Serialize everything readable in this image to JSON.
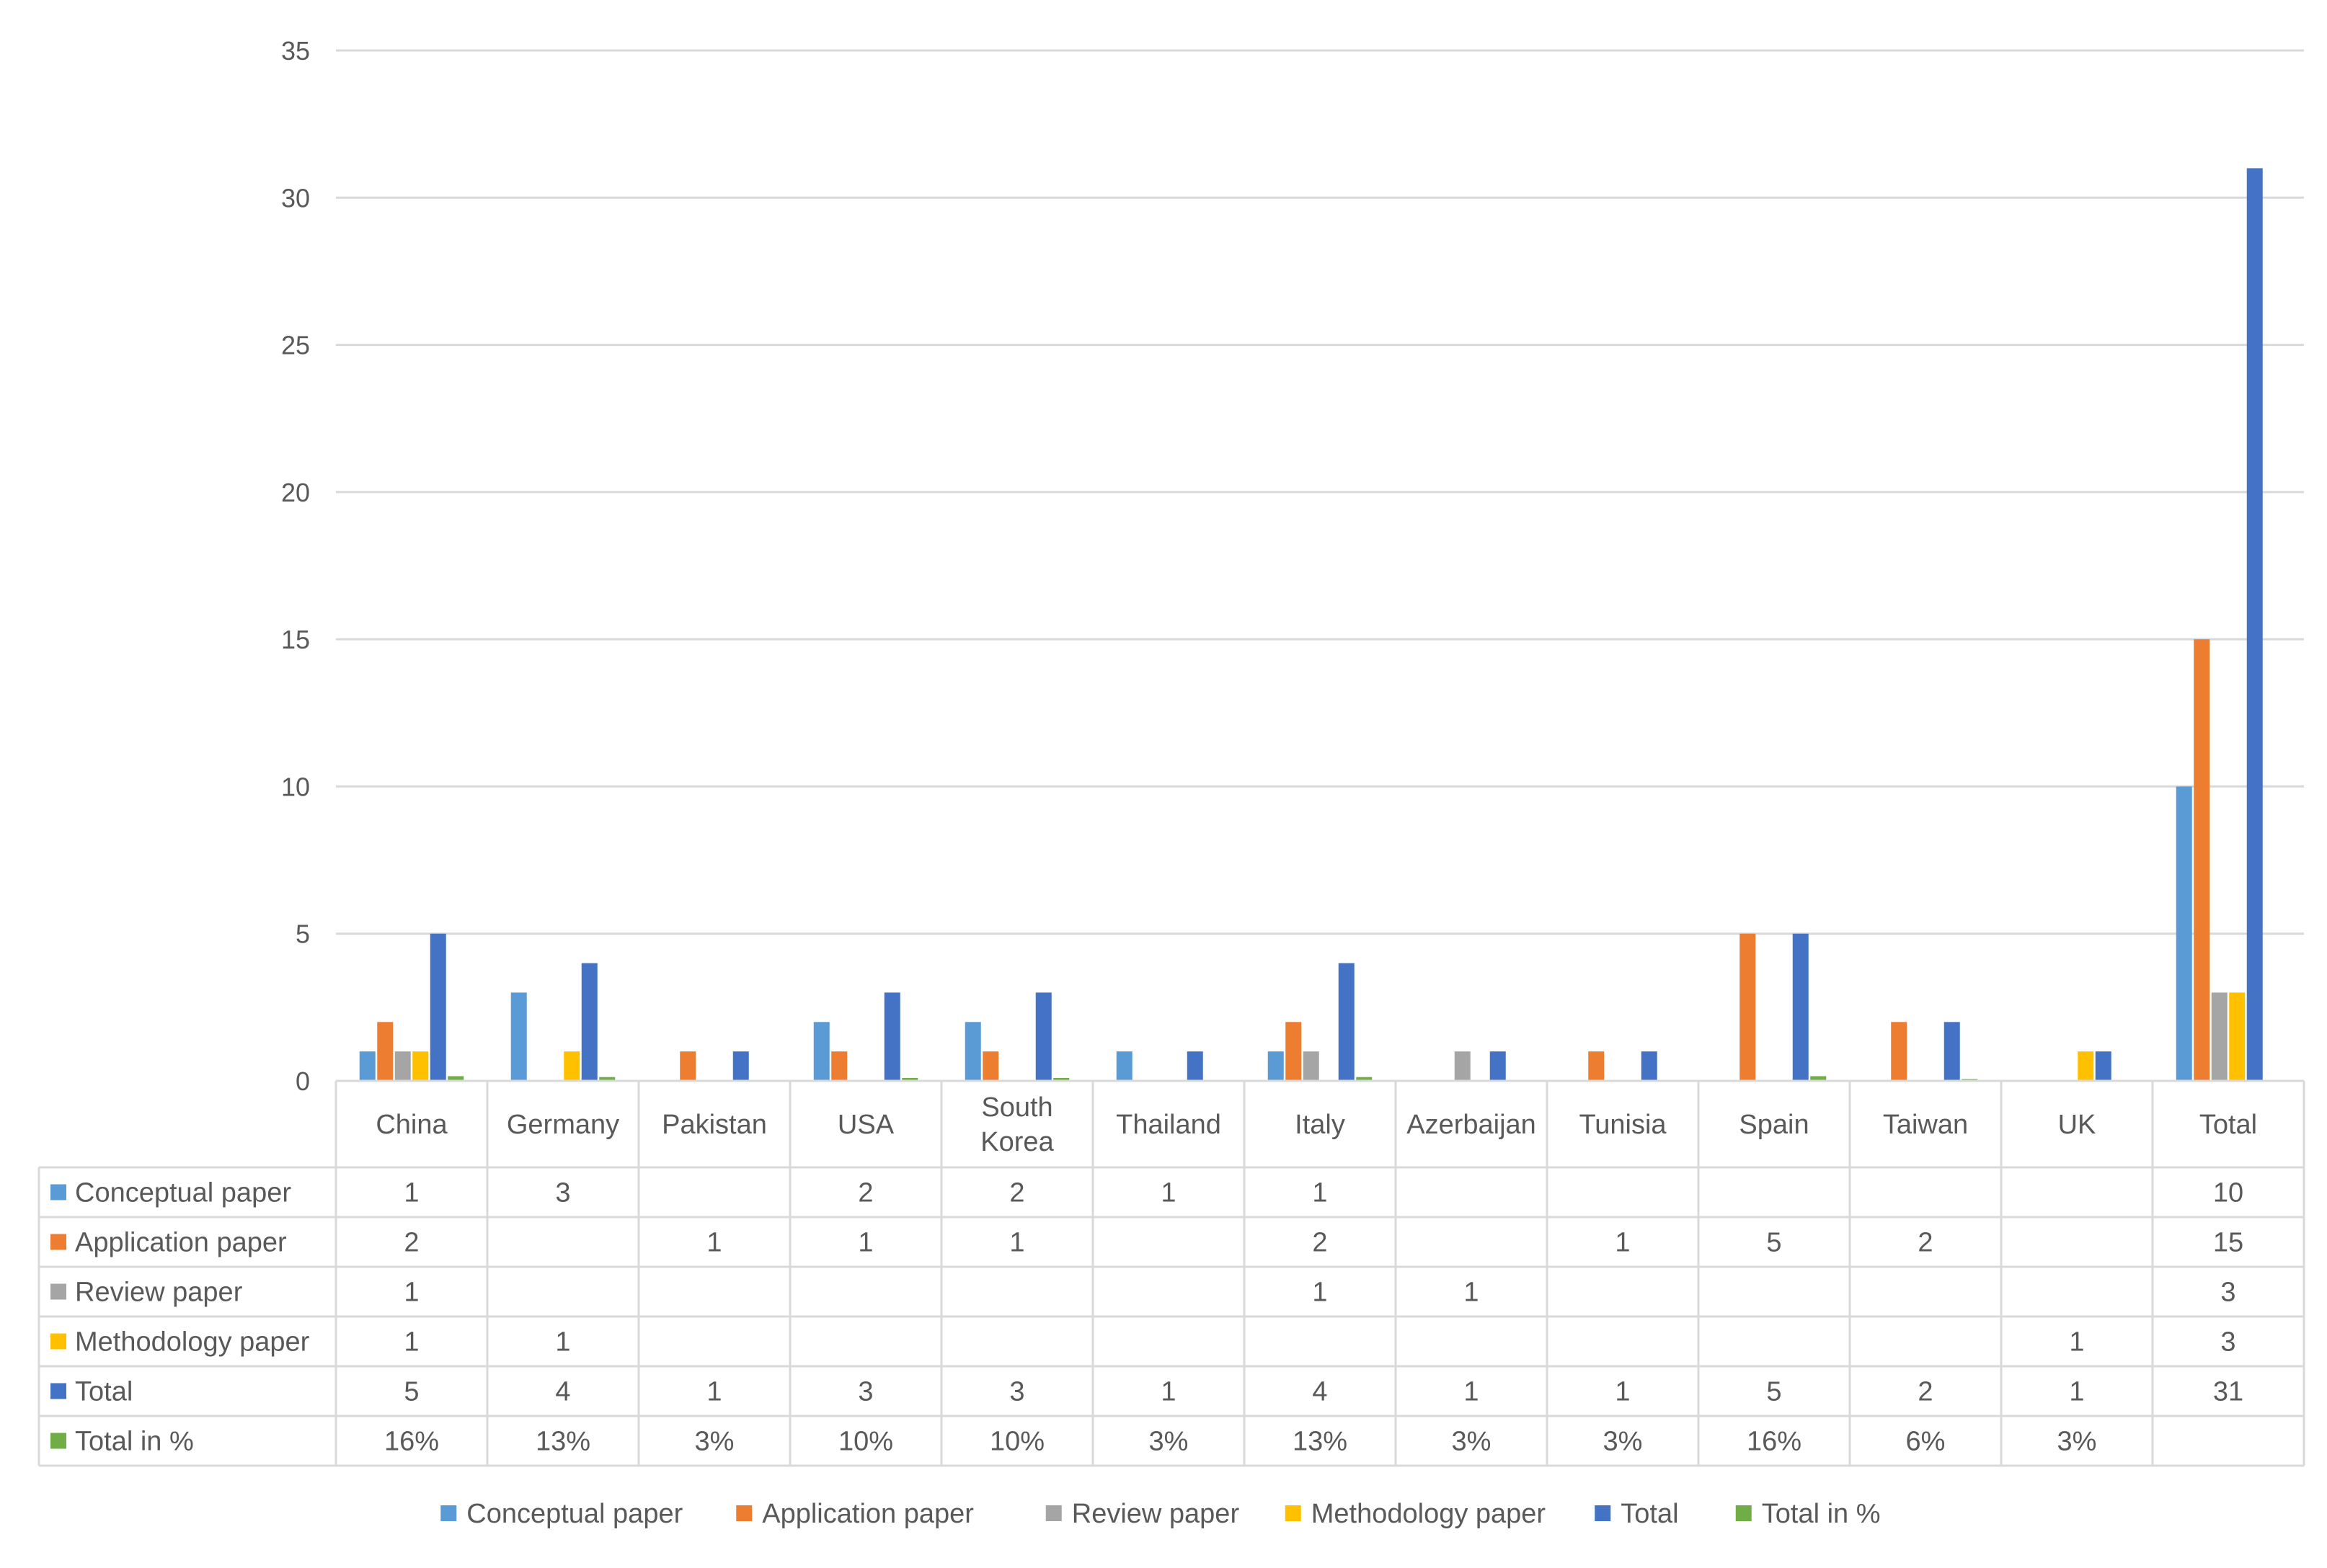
{
  "chart_data": {
    "type": "bar",
    "ylim": [
      0,
      35
    ],
    "yticks": [
      "0",
      "5",
      "10",
      "15",
      "20",
      "25",
      "30",
      "35"
    ],
    "grid": true,
    "legend_placement": "bottom",
    "categories": [
      [
        "China"
      ],
      [
        "Germany"
      ],
      [
        "Pakistan"
      ],
      [
        "USA"
      ],
      [
        "South",
        "Korea"
      ],
      [
        "Thailand"
      ],
      [
        "Italy"
      ],
      [
        "Azerbaijan"
      ],
      [
        "Tunisia"
      ],
      [
        "Spain"
      ],
      [
        "Taiwan"
      ],
      [
        "UK"
      ],
      [
        "Total"
      ]
    ],
    "series": [
      {
        "name": "Conceptual paper",
        "color": "#5B9BD5",
        "values": [
          1,
          3,
          null,
          2,
          2,
          1,
          1,
          null,
          null,
          null,
          null,
          null,
          10
        ],
        "table": [
          "1",
          "3",
          "",
          "2",
          "2",
          "1",
          "1",
          "",
          "",
          "",
          "",
          "",
          "10"
        ]
      },
      {
        "name": "Application paper",
        "color": "#ED7D31",
        "values": [
          2,
          null,
          1,
          1,
          1,
          null,
          2,
          null,
          1,
          5,
          2,
          null,
          15
        ],
        "table": [
          "2",
          "",
          "1",
          "1",
          "1",
          "",
          "2",
          "",
          "1",
          "5",
          "2",
          "",
          "15"
        ]
      },
      {
        "name": "Review paper",
        "color": "#A5A5A5",
        "values": [
          1,
          null,
          null,
          null,
          null,
          null,
          1,
          1,
          null,
          null,
          null,
          null,
          3
        ],
        "table": [
          "1",
          "",
          "",
          "",
          "",
          "",
          "1",
          "1",
          "",
          "",
          "",
          "",
          "3"
        ]
      },
      {
        "name": "Methodology paper",
        "color": "#FFC000",
        "values": [
          1,
          1,
          null,
          null,
          null,
          null,
          null,
          null,
          null,
          null,
          null,
          1,
          3
        ],
        "table": [
          "1",
          "1",
          "",
          "",
          "",
          "",
          "",
          "",
          "",
          "",
          "",
          "1",
          "3"
        ]
      },
      {
        "name": "Total",
        "color": "#4472C4",
        "values": [
          5,
          4,
          1,
          3,
          3,
          1,
          4,
          1,
          1,
          5,
          2,
          1,
          31
        ],
        "table": [
          "5",
          "4",
          "1",
          "3",
          "3",
          "1",
          "4",
          "1",
          "1",
          "5",
          "2",
          "1",
          "31"
        ]
      },
      {
        "name": "Total in %",
        "color": "#70AD47",
        "values": [
          0.16,
          0.13,
          0.03,
          0.1,
          0.1,
          0.03,
          0.13,
          0.03,
          0.03,
          0.16,
          0.06,
          0.03,
          null
        ],
        "table": [
          "16%",
          "13%",
          "3%",
          "10%",
          "10%",
          "3%",
          "13%",
          "3%",
          "3%",
          "16%",
          "6%",
          "3%",
          ""
        ]
      }
    ]
  }
}
